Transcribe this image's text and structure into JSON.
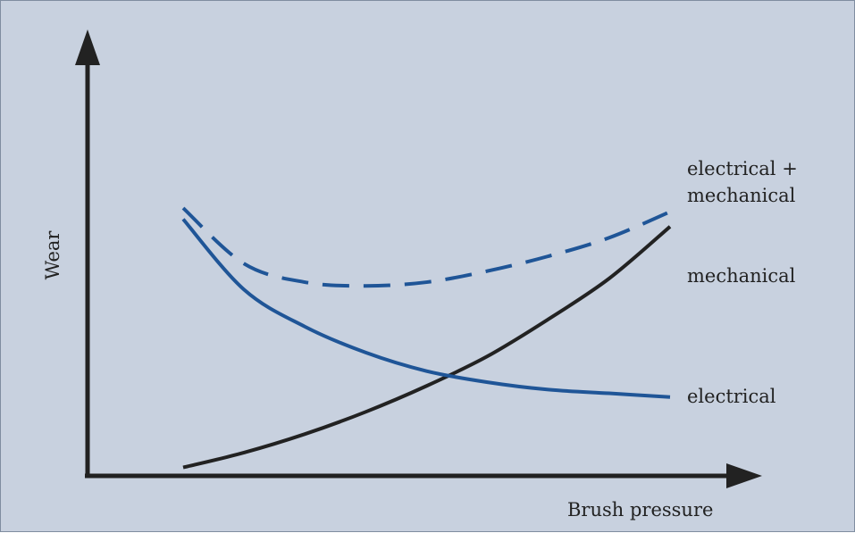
{
  "chart_data": {
    "type": "line",
    "title": "",
    "xlabel": "Brush pressure",
    "ylabel": "Wear",
    "grid": false,
    "axis_ticks": false,
    "x": [
      1,
      2,
      3,
      4,
      5,
      6,
      7,
      8,
      9
    ],
    "series": [
      {
        "name": "electrical + mechanical",
        "line_style": "dashed",
        "color": "#1f5597",
        "values": [
          73,
          58,
          53,
          52,
          53,
          56,
          60,
          65,
          72
        ]
      },
      {
        "name": "mechanical",
        "line_style": "solid",
        "color": "#222222",
        "values": [
          3,
          7,
          12,
          18,
          25,
          33,
          43,
          54,
          68
        ]
      },
      {
        "name": "electrical",
        "line_style": "solid",
        "color": "#1f5597",
        "values": [
          70,
          51,
          41,
          34,
          29,
          26,
          24,
          23,
          22
        ]
      }
    ]
  },
  "series_labels": {
    "combined": "electrical +\nmechanical",
    "mechanical": "mechanical",
    "electrical": "electrical"
  }
}
